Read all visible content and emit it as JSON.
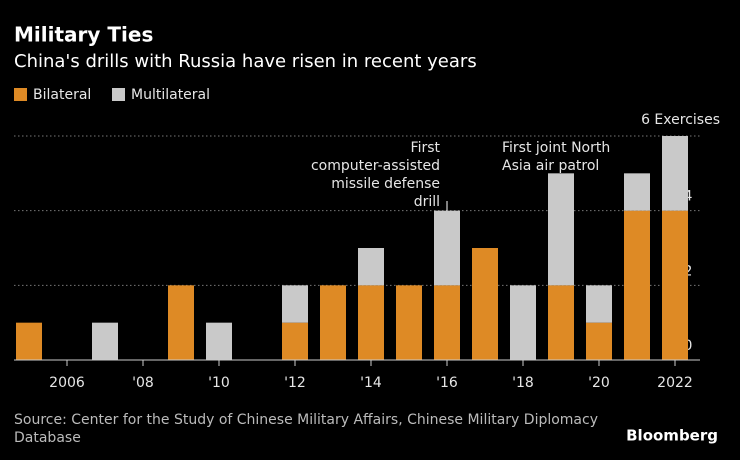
{
  "chart_data": {
    "type": "stacked_bar",
    "title": "Military Ties",
    "subtitle": "China's drills with Russia have risen in recent years",
    "categories": [
      null,
      "2006",
      null,
      "'08",
      null,
      "'10",
      null,
      "'12",
      null,
      "'14",
      null,
      "'16",
      null,
      "'18",
      null,
      "'20",
      null,
      "2022"
    ],
    "series": [
      {
        "name": "Bilateral",
        "color": "#de8a25",
        "values": [
          1,
          0,
          0,
          0,
          2,
          0,
          0,
          1,
          2,
          2,
          2,
          2,
          3,
          0,
          2,
          1,
          4,
          4
        ]
      },
      {
        "name": "Multilateral",
        "color": "#c9c9c9",
        "values": [
          0,
          0,
          1,
          0,
          0,
          1,
          0,
          1,
          0,
          1,
          0,
          2,
          0,
          2,
          3,
          1,
          1,
          2
        ]
      }
    ],
    "ylim": [
      0,
      6
    ],
    "yticks": [
      0,
      2,
      4,
      {
        "value": 6,
        "label": "6 Exercises"
      }
    ],
    "grid": true,
    "annotations": [
      {
        "lines": [
          "First",
          "computer-assisted",
          "missile defense",
          "drill"
        ]
      },
      {
        "lines": [
          "First joint North",
          "Asia air patrol"
        ]
      }
    ],
    "source": [
      "Source: Center for the Study of Chinese Military Affairs, Chinese Military Diplomacy",
      "Database"
    ],
    "credit": "Bloomberg"
  }
}
